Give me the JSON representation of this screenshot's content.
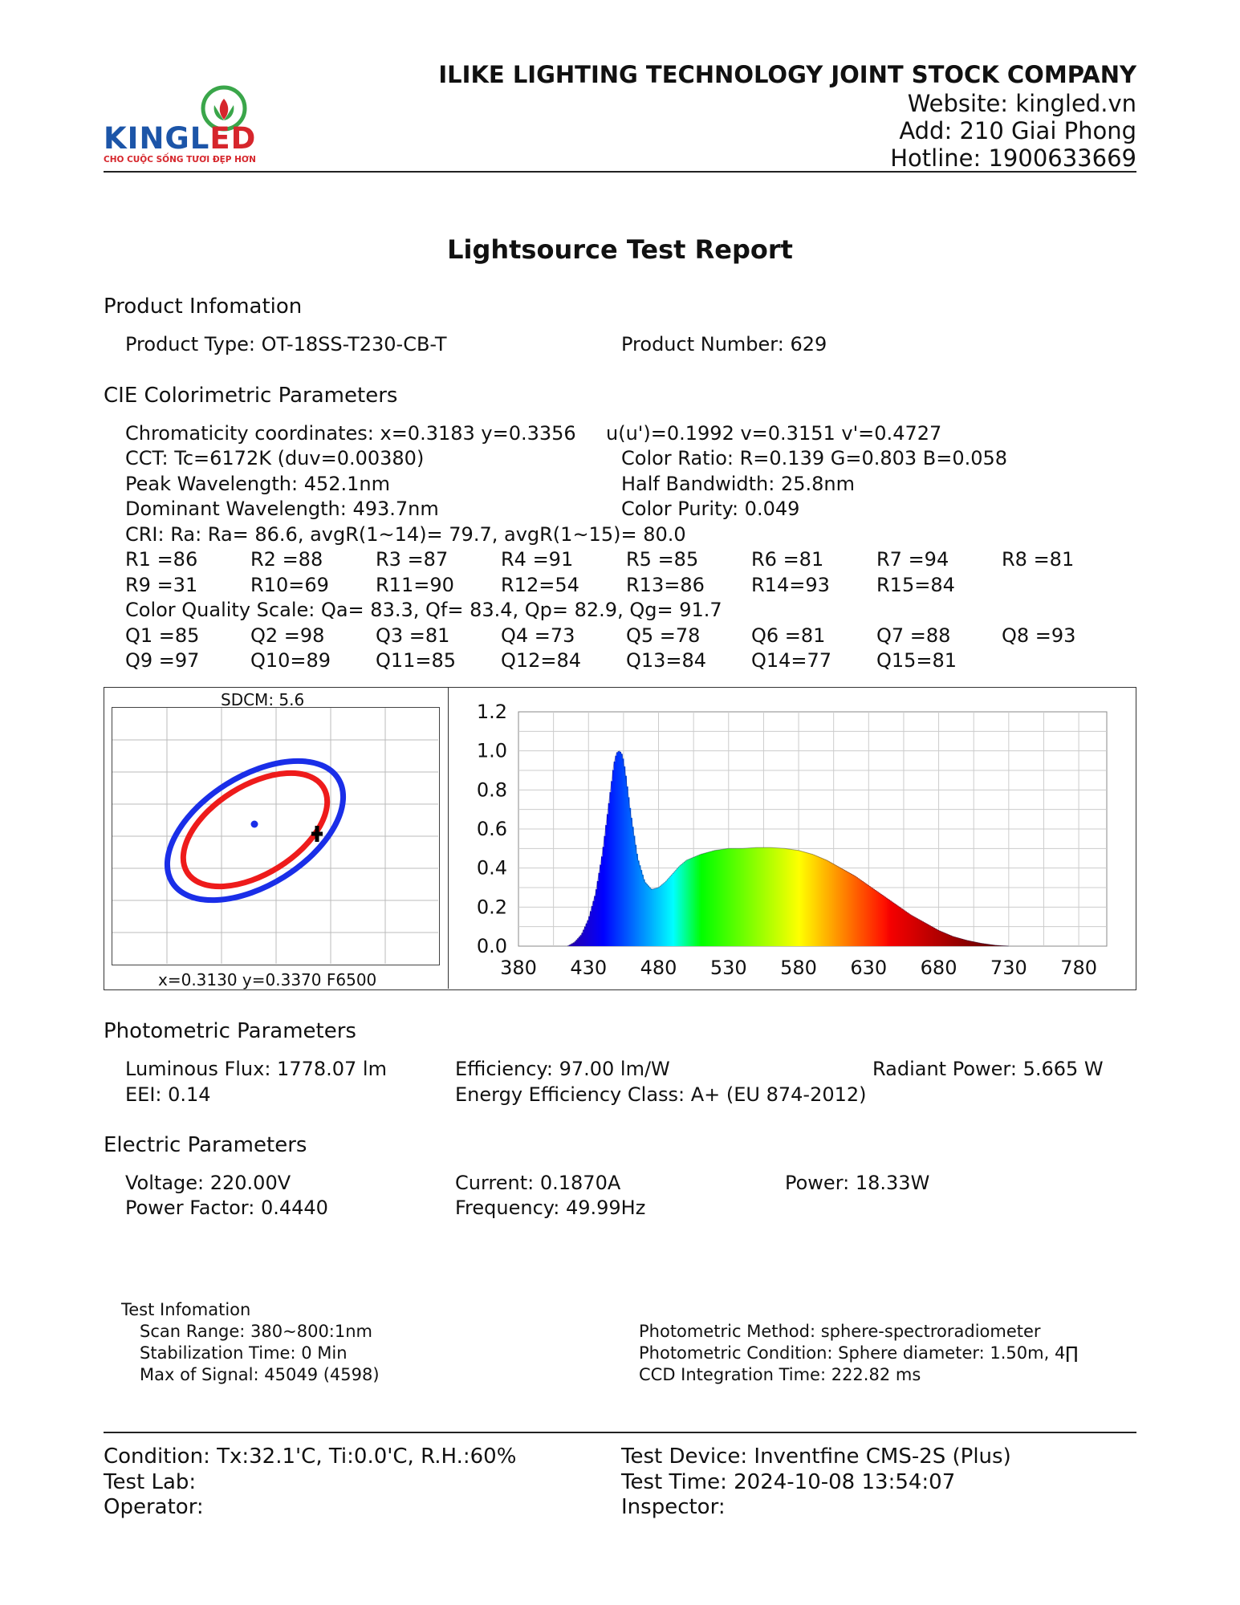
{
  "header": {
    "company": "ILIKE LIGHTING TECHNOLOGY JOINT STOCK COMPANY",
    "website": "Website: kingled.vn",
    "address": "Add: 210 Giai Phong",
    "hotline": "Hotline: 1900633669",
    "logo_text": "KINGLED",
    "logo_tagline": "CHO CUỘC SỐNG TƯƠI ĐẸP HƠN",
    "brand_colors": {
      "blue": "#1c55a8",
      "red": "#d6262c",
      "green": "#3aa64a"
    }
  },
  "title": "Lightsource Test Report",
  "product": {
    "heading": "Product Infomation",
    "type": "Product Type: OT-18SS-T230-CB-T",
    "number": "Product Number: 629"
  },
  "cie": {
    "heading": "CIE Colorimetric Parameters",
    "chromaticity": "Chromaticity coordinates: x=0.3183 y=0.3356",
    "uv": "u(u')=0.1992 v=0.3151 v'=0.4727",
    "cct": "CCT: Tc=6172K (duv=0.00380)",
    "color_ratio": "Color Ratio: R=0.139  G=0.803  B=0.058",
    "peak": "Peak Wavelength: 452.1nm",
    "half_bw": "Half Bandwidth: 25.8nm",
    "dominant": "Dominant Wavelength: 493.7nm",
    "purity": "Color Purity: 0.049",
    "cri": "CRI: Ra: Ra= 86.6, avgR(1~14)= 79.7, avgR(1~15)= 80.0",
    "r_row1": [
      "R1 =86",
      "R2 =88",
      "R3 =87",
      "R4 =91",
      "R5 =85",
      "R6 =81",
      "R7 =94",
      "R8 =81"
    ],
    "r_row2": [
      "R9 =31",
      "R10=69",
      "R11=90",
      "R12=54",
      "R13=86",
      "R14=93",
      "R15=84"
    ],
    "cqs": "Color Quality Scale: Qa= 83.3, Qf= 83.4, Qp= 82.9, Qg= 91.7",
    "q_row1": [
      "Q1 =85",
      "Q2 =98",
      "Q3 =81",
      "Q4 =73",
      "Q5 =78",
      "Q6 =81",
      "Q7 =88",
      "Q8 =93"
    ],
    "q_row2": [
      "Q9 =97",
      "Q10=89",
      "Q11=85",
      "Q12=84",
      "Q13=84",
      "Q14=77",
      "Q15=81"
    ]
  },
  "sdcm_panel": {
    "title": "SDCM:   5.6",
    "footer": "x=0.3130 y=0.3370 F6500",
    "colors": {
      "outer": "#1a2ee8",
      "inner": "#ee1b1b",
      "marker": "#000000",
      "point": "#1a2ee8"
    }
  },
  "chart_data": {
    "type": "area",
    "title": "",
    "xlabel": "",
    "ylabel": "",
    "xlim": [
      380,
      800
    ],
    "ylim": [
      0,
      1.2
    ],
    "x_ticks": [
      "380",
      "430",
      "480",
      "530",
      "580",
      "630",
      "680",
      "730",
      "780"
    ],
    "y_ticks": [
      "1.2",
      "1.0",
      "0.8",
      "0.6",
      "0.4",
      "0.2",
      "0.0"
    ],
    "grid": true,
    "fill": "wavelength-colored spectrum",
    "series": [
      {
        "x": [
          415,
          420,
          425,
          430,
          435,
          440,
          445,
          448,
          450,
          452,
          454,
          456,
          460,
          465,
          470,
          475,
          480,
          485,
          490,
          495,
          500,
          510,
          520,
          530,
          540,
          550,
          560,
          570,
          580,
          590,
          600,
          610,
          620,
          630,
          640,
          650,
          660,
          670,
          680,
          690,
          700,
          710,
          720,
          730
        ],
        "values": [
          0.0,
          0.02,
          0.06,
          0.14,
          0.27,
          0.48,
          0.76,
          0.93,
          0.99,
          1.0,
          0.98,
          0.9,
          0.68,
          0.45,
          0.33,
          0.29,
          0.3,
          0.33,
          0.37,
          0.41,
          0.44,
          0.47,
          0.49,
          0.5,
          0.5,
          0.505,
          0.505,
          0.5,
          0.49,
          0.47,
          0.44,
          0.4,
          0.36,
          0.31,
          0.26,
          0.21,
          0.16,
          0.12,
          0.08,
          0.05,
          0.03,
          0.015,
          0.005,
          0.0
        ]
      }
    ]
  },
  "photometric": {
    "heading": "Photometric Parameters",
    "flux": "Luminous Flux: 1778.07 lm",
    "efficiency": "Efficiency: 97.00 lm/W",
    "radiant": "Radiant Power: 5.665 W",
    "eei": "EEI:  0.14",
    "energy_class": "Energy Efficiency Class: A+ (EU 874-2012)"
  },
  "electric": {
    "heading": "Electric Parameters",
    "voltage": "Voltage: 220.00V",
    "current": "Current: 0.1870A",
    "power": "Power: 18.33W",
    "pf": "Power Factor: 0.4440",
    "frequency": "Frequency: 49.99Hz"
  },
  "test_info": {
    "heading": "Test Infomation",
    "scan_range": "Scan Range: 380~800:1nm",
    "stabilization": "Stabilization Time: 0 Min",
    "max_signal": "Max of Signal: 45049 (4598)",
    "method": "Photometric Method: sphere-spectroradiometer",
    "condition": "Photometric Condition: Sphere diameter: 1.50m, 4∏",
    "ccd": "CCD Integration Time: 222.82 ms"
  },
  "footer": {
    "condition": "Condition: Tx:32.1'C, Ti:0.0'C, R.H.:60%",
    "device": "Test Device: Inventfine CMS-2S (Plus)",
    "lab": "Test Lab:",
    "time": "Test Time: 2024-10-08 13:54:07",
    "operator": "Operator:",
    "inspector": "Inspector:"
  }
}
